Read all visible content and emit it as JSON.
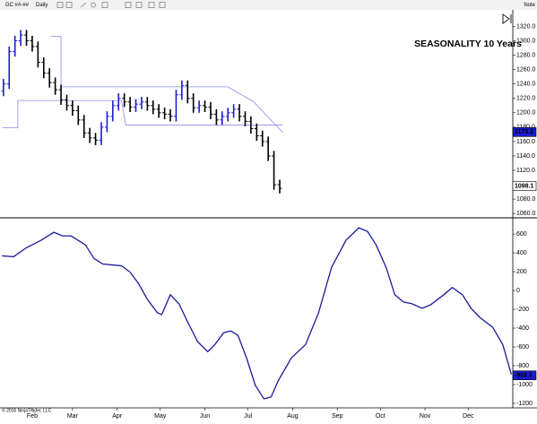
{
  "toolbar": {
    "instrument": "GC ##-##",
    "interval": "Daily",
    "right_text": "Note"
  },
  "footer": "© 2016 NinjaTrader, LLC",
  "chart_data": [
    {
      "type": "ohlc",
      "annotation": "SEASONALITY 10 Years",
      "xlim": [
        9.6,
        366
      ],
      "ylim": [
        1054,
        1343
      ],
      "yticks": [
        {
          "value": 1060,
          "label": "1060.0"
        },
        {
          "value": 1080,
          "label": "1080.0"
        },
        {
          "value": 1100,
          "label": "1100.0"
        },
        {
          "value": 1120,
          "label": "1120.0"
        },
        {
          "value": 1140,
          "label": "1140.0"
        },
        {
          "value": 1160,
          "label": "1160.0"
        },
        {
          "value": 1180,
          "label": "1180.0"
        },
        {
          "value": 1200,
          "label": "1200.0"
        },
        {
          "value": 1220,
          "label": "1220.0"
        },
        {
          "value": 1240,
          "label": "1240.0"
        },
        {
          "value": 1260,
          "label": "1260.0"
        },
        {
          "value": 1280,
          "label": "1280.0"
        },
        {
          "value": 1300,
          "label": "1300.0"
        },
        {
          "value": 1320,
          "label": "1320.0"
        }
      ],
      "up_color": "#1c1cd0",
      "down_color": "#000000",
      "x": [
        12,
        16,
        20,
        24,
        28,
        32,
        36,
        40,
        44,
        48,
        52,
        56,
        60,
        64,
        68,
        72,
        76,
        80,
        84,
        88,
        92,
        96,
        100,
        104,
        108,
        112,
        116,
        120,
        124,
        128,
        132,
        136,
        140,
        144,
        148,
        152,
        156,
        160,
        164,
        168,
        172,
        176,
        180,
        184,
        188,
        192,
        196,
        200,
        204
      ],
      "open": [
        1230,
        1240,
        1285,
        1300,
        1308,
        1300,
        1292,
        1270,
        1255,
        1242,
        1232,
        1218,
        1210,
        1203,
        1190,
        1172,
        1165,
        1162,
        1180,
        1195,
        1210,
        1220,
        1215,
        1208,
        1212,
        1215,
        1210,
        1205,
        1200,
        1198,
        1195,
        1225,
        1238,
        1220,
        1207,
        1210,
        1208,
        1198,
        1190,
        1195,
        1200,
        1205,
        1195,
        1188,
        1178,
        1168,
        1160,
        1140,
        1100
      ],
      "high": [
        1247,
        1292,
        1307,
        1315,
        1315,
        1307,
        1299,
        1277,
        1262,
        1249,
        1239,
        1225,
        1217,
        1210,
        1197,
        1179,
        1172,
        1187,
        1202,
        1217,
        1227,
        1227,
        1222,
        1219,
        1222,
        1222,
        1217,
        1212,
        1207,
        1205,
        1232,
        1245,
        1245,
        1227,
        1217,
        1217,
        1215,
        1205,
        1202,
        1207,
        1212,
        1212,
        1202,
        1195,
        1185,
        1175,
        1167,
        1147,
        1107
      ],
      "low": [
        1223,
        1233,
        1278,
        1293,
        1293,
        1285,
        1263,
        1248,
        1235,
        1225,
        1211,
        1203,
        1196,
        1183,
        1165,
        1158,
        1155,
        1155,
        1173,
        1188,
        1203,
        1208,
        1201,
        1201,
        1205,
        1203,
        1198,
        1193,
        1191,
        1188,
        1188,
        1218,
        1213,
        1200,
        1200,
        1201,
        1191,
        1183,
        1183,
        1188,
        1193,
        1188,
        1181,
        1171,
        1161,
        1153,
        1133,
        1093,
        1088
      ],
      "close": [
        1240,
        1285,
        1300,
        1308,
        1300,
        1292,
        1270,
        1255,
        1242,
        1232,
        1218,
        1210,
        1203,
        1190,
        1172,
        1165,
        1162,
        1180,
        1195,
        1210,
        1220,
        1215,
        1208,
        1212,
        1215,
        1210,
        1205,
        1200,
        1198,
        1195,
        1225,
        1238,
        1220,
        1207,
        1210,
        1208,
        1198,
        1190,
        1195,
        1200,
        1205,
        1195,
        1188,
        1178,
        1168,
        1160,
        1140,
        1100,
        1095
      ],
      "channels": [
        {
          "color": "#8c8cf0",
          "x": [
            45,
            52,
            52,
            147,
            168,
            186,
            206
          ],
          "values": [
            1306,
            1306,
            1236,
            1236,
            1236,
            1215,
            1173
          ]
        },
        {
          "color": "#8c8cf0",
          "x": [
            11,
            22,
            22,
            94,
            97,
            206
          ],
          "values": [
            1179,
            1179,
            1217,
            1217,
            1183,
            1183
          ]
        }
      ],
      "markers": [
        {
          "value": 1173.2,
          "color": "#1c1cd0"
        },
        {
          "value": 1098.1,
          "color": "#ffffff"
        }
      ]
    },
    {
      "type": "line",
      "xlim": [
        9.6,
        366
      ],
      "ylim": [
        -1248,
        773
      ],
      "xticks": [
        {
          "value": 32,
          "label": "Feb"
        },
        {
          "value": 60,
          "label": "Mar"
        },
        {
          "value": 91,
          "label": "Apr"
        },
        {
          "value": 121,
          "label": "May"
        },
        {
          "value": 152,
          "label": "Jun"
        },
        {
          "value": 182,
          "label": "Jul"
        },
        {
          "value": 213,
          "label": "Aug"
        },
        {
          "value": 244,
          "label": "Sep"
        },
        {
          "value": 274,
          "label": "Oct"
        },
        {
          "value": 305,
          "label": "Nov"
        },
        {
          "value": 335,
          "label": "Dec"
        }
      ],
      "yticks": [
        600,
        400,
        200,
        0,
        -200,
        -400,
        -600,
        -800,
        -1000,
        -1200
      ],
      "color": "#1a1a9c",
      "x": [
        11,
        19,
        28,
        38,
        47,
        53,
        59,
        69,
        75,
        81,
        94,
        100,
        106,
        112,
        119,
        122,
        128,
        134,
        140,
        147,
        154,
        159,
        165,
        170,
        175,
        181,
        187,
        193,
        198,
        203,
        212,
        222,
        231,
        240,
        250,
        259,
        265,
        271,
        278,
        284,
        290,
        296,
        303,
        309,
        318,
        324,
        331,
        337,
        343,
        352,
        359,
        365
      ],
      "values": [
        369,
        359,
        456,
        533,
        619,
        581,
        581,
        485,
        340,
        282,
        263,
        196,
        71,
        -93,
        -237,
        -256,
        -45,
        -141,
        -334,
        -545,
        -651,
        -574,
        -449,
        -430,
        -478,
        -719,
        -1007,
        -1152,
        -1132,
        -959,
        -719,
        -574,
        -237,
        244,
        533,
        667,
        629,
        485,
        244,
        -45,
        -122,
        -141,
        -189,
        -151,
        -45,
        32,
        -45,
        -189,
        -285,
        -391,
        -574,
        -892
      ],
      "markers": [
        {
          "value": -902.1,
          "color": "#1c1cd0"
        }
      ]
    }
  ]
}
